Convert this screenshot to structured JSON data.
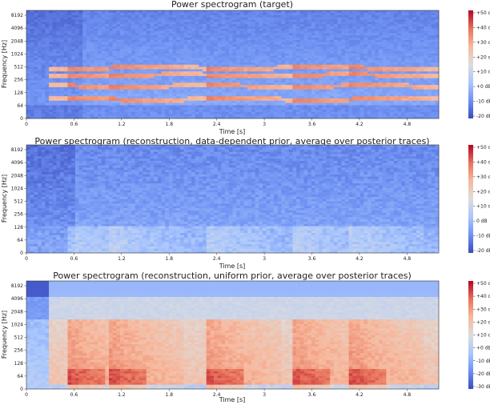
{
  "colors": {
    "cmap": [
      "#3b4cc0",
      "#6f92f3",
      "#aac7fd",
      "#dddcdc",
      "#f7b89c",
      "#e7745b",
      "#b40426"
    ]
  },
  "chart_data": [
    {
      "type": "heatmap",
      "title": "Power spectrogram (target)",
      "xlabel": "Time [s]",
      "ylabel": "Frequency [Hz]",
      "xticks": [
        "0",
        "0.6",
        "1.2",
        "1.8",
        "2.4",
        "3",
        "3.6",
        "4.2",
        "4.8"
      ],
      "xlim": [
        0,
        5.2
      ],
      "yticks": [
        "0",
        "64",
        "128",
        "256",
        "512",
        "1024",
        "2048",
        "4096",
        "8192"
      ],
      "y_scale": "log2 (symlog)",
      "colorbar": {
        "label_unit": "dB",
        "ticks": [
          "+50 dB",
          "+40 dB",
          "+30 dB",
          "+20 dB",
          "+10 dB",
          "+0 dB",
          "-10 dB",
          "-20 dB"
        ]
      },
      "pattern": "harmonic"
    },
    {
      "type": "heatmap",
      "title": "Power spectrogram (reconstruction, data-dependent prior, average over posterior traces)",
      "xlabel": "Time [s]",
      "ylabel": "Frequency [Hz]",
      "xticks": [
        "0",
        "0.6",
        "1.2",
        "1.8",
        "2.4",
        "3",
        "3.6",
        "4.2",
        "4.8"
      ],
      "xlim": [
        0,
        5.2
      ],
      "yticks": [
        "0",
        "64",
        "128",
        "256",
        "512",
        "1024",
        "2048",
        "4096",
        "8192"
      ],
      "y_scale": "log2 (symlog)",
      "colorbar": {
        "label_unit": "dB",
        "ticks": [
          "+50 dB",
          "+40 dB",
          "+30 dB",
          "+20 dB",
          "+10 dB",
          "0 dB",
          "-10 dB",
          "-20 dB"
        ]
      },
      "pattern": "diffuse"
    },
    {
      "type": "heatmap",
      "title": "Power spectrogram (reconstruction, uniform prior, average over posterior traces)",
      "xlabel": "Time [s]",
      "ylabel": "Frequency [Hz]",
      "xticks": [
        "0",
        "0.6",
        "1.2",
        "1.8",
        "2.4",
        "3",
        "3.6",
        "4.2",
        "4.8"
      ],
      "xlim": [
        0,
        5.2
      ],
      "yticks": [
        "0",
        "64",
        "128",
        "256",
        "512",
        "1024",
        "2048",
        "4096",
        "8192"
      ],
      "y_scale": "log2 (symlog)",
      "colorbar": {
        "label_unit": "dB",
        "ticks": [
          "+50 dB",
          "+40 dB",
          "+30 dB",
          "+20 dB",
          "+10 dB",
          "+0 dB",
          "-10 dB",
          "-20 dB",
          "-30 dB"
        ]
      },
      "pattern": "warm"
    }
  ]
}
